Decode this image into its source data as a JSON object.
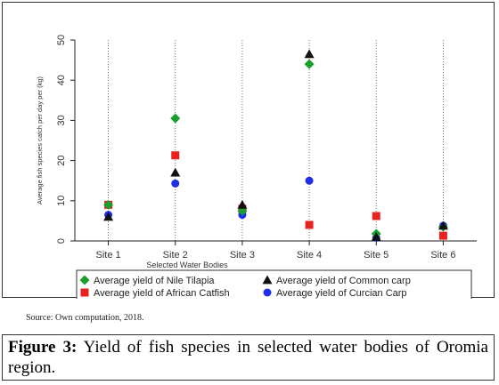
{
  "chart_data": {
    "type": "scatter",
    "title": "",
    "xlabel": "Selected Water Bodies",
    "ylabel": "Average fish species catch per day per (kg)",
    "categories": [
      "Site 1",
      "Site 2",
      "Site 3",
      "Site 4",
      "Site 5",
      "Site 6"
    ],
    "ylim": [
      0,
      50
    ],
    "yticks": [
      0,
      10,
      20,
      30,
      40,
      50
    ],
    "grid": "vertical dotted lines at each site",
    "legend_position": "bottom",
    "series": [
      {
        "name": "Average yield of Nile Tilapia",
        "marker": "diamond",
        "color": "#1a9e2e",
        "values": [
          9,
          30.5,
          7.5,
          44,
          1.8,
          3.5
        ]
      },
      {
        "name": "Average yield of Common carp",
        "marker": "triangle",
        "color": "#111111",
        "values": [
          6,
          17,
          9,
          46.5,
          1,
          3.8
        ]
      },
      {
        "name": "Average yield of African Catfish",
        "marker": "square",
        "color": "#e8231f",
        "values": [
          9,
          21.3,
          8,
          4,
          6.2,
          1.3
        ]
      },
      {
        "name": "Average yield of Curcian Carp",
        "marker": "circle",
        "color": "#1f2ee8",
        "values": [
          6.5,
          14.3,
          6.5,
          15,
          0.8,
          3.8
        ]
      }
    ]
  },
  "source_text": "Source: Own computation, 2018.",
  "caption": {
    "label": "Figure 3:",
    "text": " Yield of fish species in selected water bodies of Oromia region."
  }
}
